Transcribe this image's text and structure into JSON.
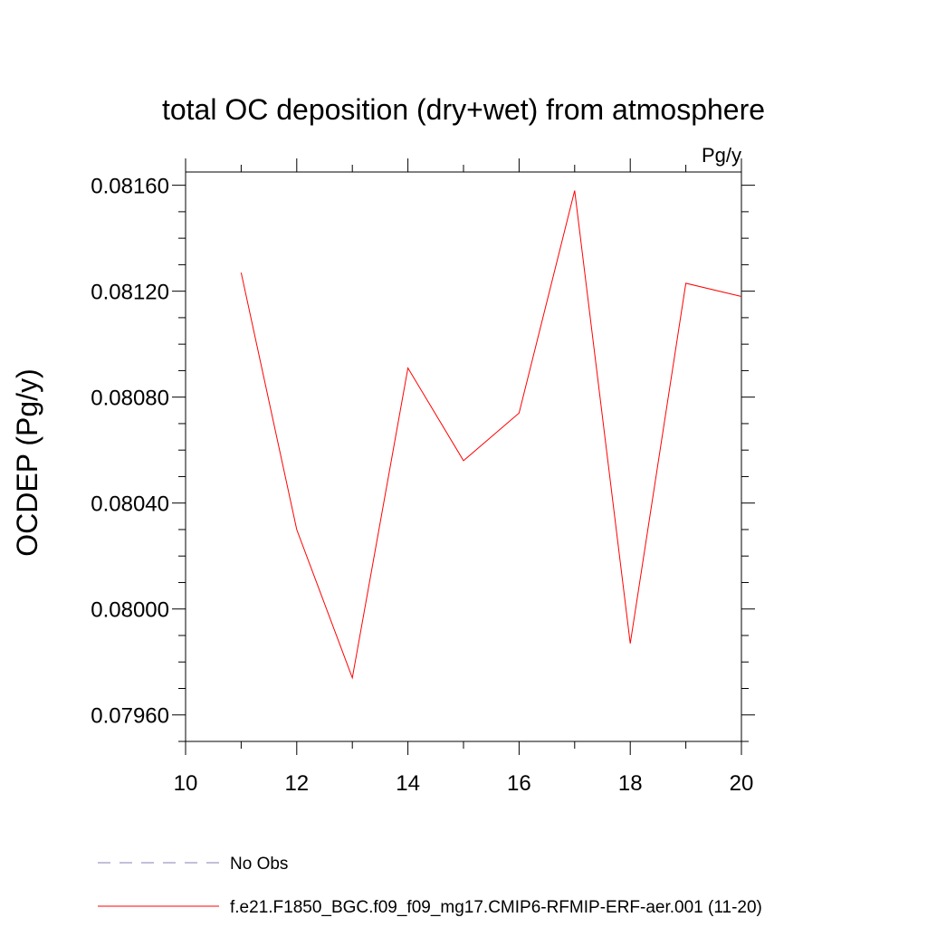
{
  "chart_data": {
    "type": "line",
    "title": "total OC deposition (dry+wet) from atmosphere",
    "units_label": "Pg/y",
    "ylabel": "OCDEP  (Pg/y)",
    "xlabel": "",
    "xlim": [
      10,
      20
    ],
    "ylim": [
      0.0795,
      0.08165
    ],
    "x_ticks": [
      10,
      12,
      14,
      16,
      18,
      20
    ],
    "x_tick_labels": [
      "10",
      "12",
      "14",
      "16",
      "18",
      "20"
    ],
    "y_ticks": [
      0.0796,
      0.08,
      0.0804,
      0.0808,
      0.0812,
      0.0816
    ],
    "y_tick_labels": [
      "0.07960",
      "0.08000",
      "0.08040",
      "0.08080",
      "0.08120",
      "0.08160"
    ],
    "grid": false,
    "legend_position": "bottom",
    "series": [
      {
        "name": "f.e21.F1850_BGC.f09_f09_mg17.CMIP6-RFMIP-ERF-aer.001 (11-20)",
        "color": "#ff0000",
        "style": "solid",
        "x": [
          11,
          12,
          13,
          14,
          15,
          16,
          17,
          18,
          19,
          20
        ],
        "y": [
          0.08127,
          0.0803,
          0.07974,
          0.08091,
          0.08056,
          0.08074,
          0.08158,
          0.07987,
          0.08123,
          0.08118
        ]
      }
    ],
    "legend": [
      {
        "label": "No Obs",
        "color": "#8a7fb5",
        "style": "dashed"
      },
      {
        "label": "f.e21.F1850_BGC.f09_f09_mg17.CMIP6-RFMIP-ERF-aer.001 (11-20)",
        "color": "#ff0000",
        "style": "solid"
      }
    ]
  }
}
